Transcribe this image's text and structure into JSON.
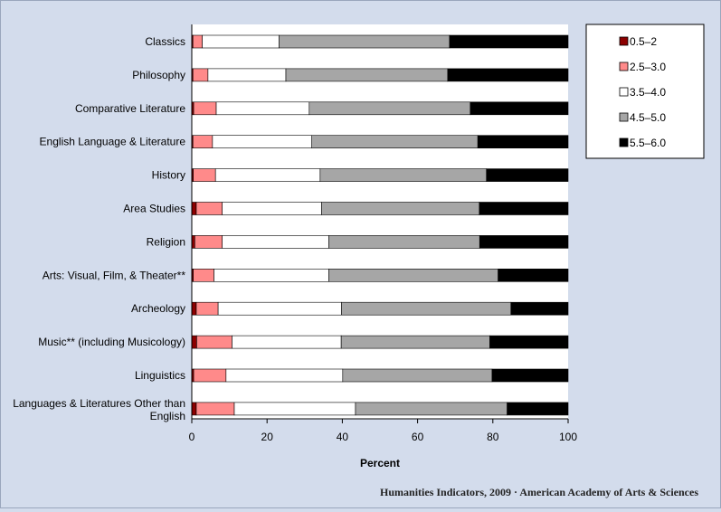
{
  "chart_data": {
    "type": "bar",
    "orientation": "horizontal",
    "stacked": true,
    "xlabel": "Percent",
    "xlim": [
      0,
      100
    ],
    "xticks": [
      "0",
      "20",
      "40",
      "60",
      "80",
      "100"
    ],
    "categories": [
      "Classics",
      "Philosophy",
      "Comparative Literature",
      "English Language & Literature",
      "History",
      "Area Studies",
      "Religion",
      "Arts: Visual, Film, & Theater**",
      "Archeology",
      "Music** (including Musicology)",
      "Linguistics",
      "Languages & Literatures Other than English"
    ],
    "series": [
      {
        "name": "0.5–2",
        "color": "#8b0000",
        "values": [
          0.3,
          0.3,
          0.5,
          0.3,
          0.4,
          1.2,
          0.8,
          0.4,
          1.2,
          1.3,
          0.5,
          1.2
        ]
      },
      {
        "name": "2.5–3.0",
        "color": "#ff8a8a",
        "values": [
          2.5,
          4.0,
          6.0,
          5.2,
          5.9,
          6.9,
          7.3,
          5.5,
          5.8,
          9.4,
          8.6,
          10.1
        ]
      },
      {
        "name": "3.5–4.0",
        "color": "#ffffff",
        "values": [
          20.4,
          20.7,
          24.7,
          26.4,
          27.8,
          26.4,
          28.3,
          30.5,
          32.8,
          29.0,
          31.0,
          32.2
        ]
      },
      {
        "name": "4.5–5.0",
        "color": "#a6a6a6",
        "values": [
          45.3,
          43.0,
          42.8,
          44.1,
          44.2,
          41.9,
          40.1,
          45.0,
          45.0,
          39.5,
          39.7,
          40.3
        ]
      },
      {
        "name": "5.5–6.0",
        "color": "#000000",
        "values": [
          31.5,
          32.0,
          26.0,
          24.0,
          21.7,
          23.6,
          23.5,
          18.6,
          15.2,
          20.8,
          20.2,
          16.2
        ]
      }
    ],
    "legend_position": "top-right",
    "grid": false
  },
  "footer": {
    "source": "Humanities Indicators, 2009 · American Academy of Arts & Sciences"
  }
}
